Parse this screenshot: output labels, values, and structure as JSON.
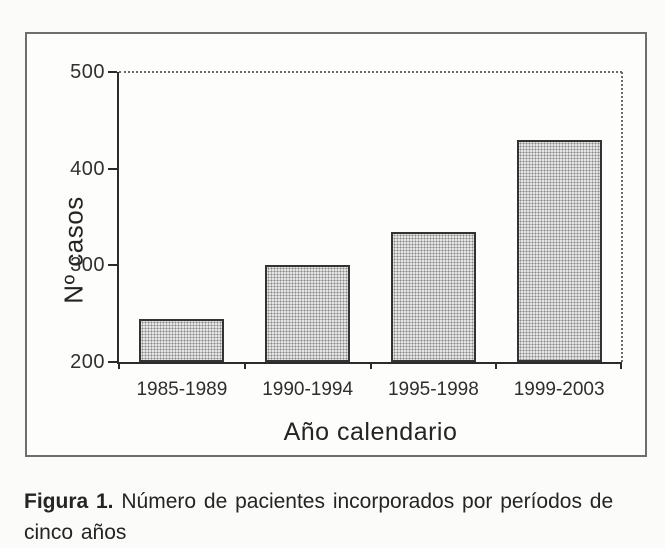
{
  "figure": {
    "y_axis_label": "Nº casos",
    "x_axis_label": "Año calendario"
  },
  "caption": {
    "bold": "Figura 1.",
    "line1_rest": " Número de pacientes incorporados por períodos de",
    "line2": "cinco años"
  },
  "chart_data": {
    "type": "bar",
    "title": "",
    "categories": [
      "1985-1989",
      "1990-1994",
      "1995-1998",
      "1999-2003"
    ],
    "values": [
      245,
      300,
      335,
      430
    ],
    "xlabel": "Año calendario",
    "ylabel": "Nº casos",
    "ylim": [
      200,
      500
    ],
    "yticks": [
      200,
      300,
      400,
      500
    ],
    "grid": "dotted horizontal gridline at y=500 and dotted right plot border only",
    "legend": "none",
    "bar_style": "light gray stipple-pattern fill with dark outline"
  },
  "colors": {
    "bar_fill": "#e4e4e4",
    "bar_dot": "#8a8a8a",
    "bar_border": "#333333",
    "axis": "#2b2b2b",
    "gridline": "#6a6a6a",
    "box_border": "#6e6e6e",
    "background": "#fbfbfa",
    "text": "#2a2a2a"
  }
}
